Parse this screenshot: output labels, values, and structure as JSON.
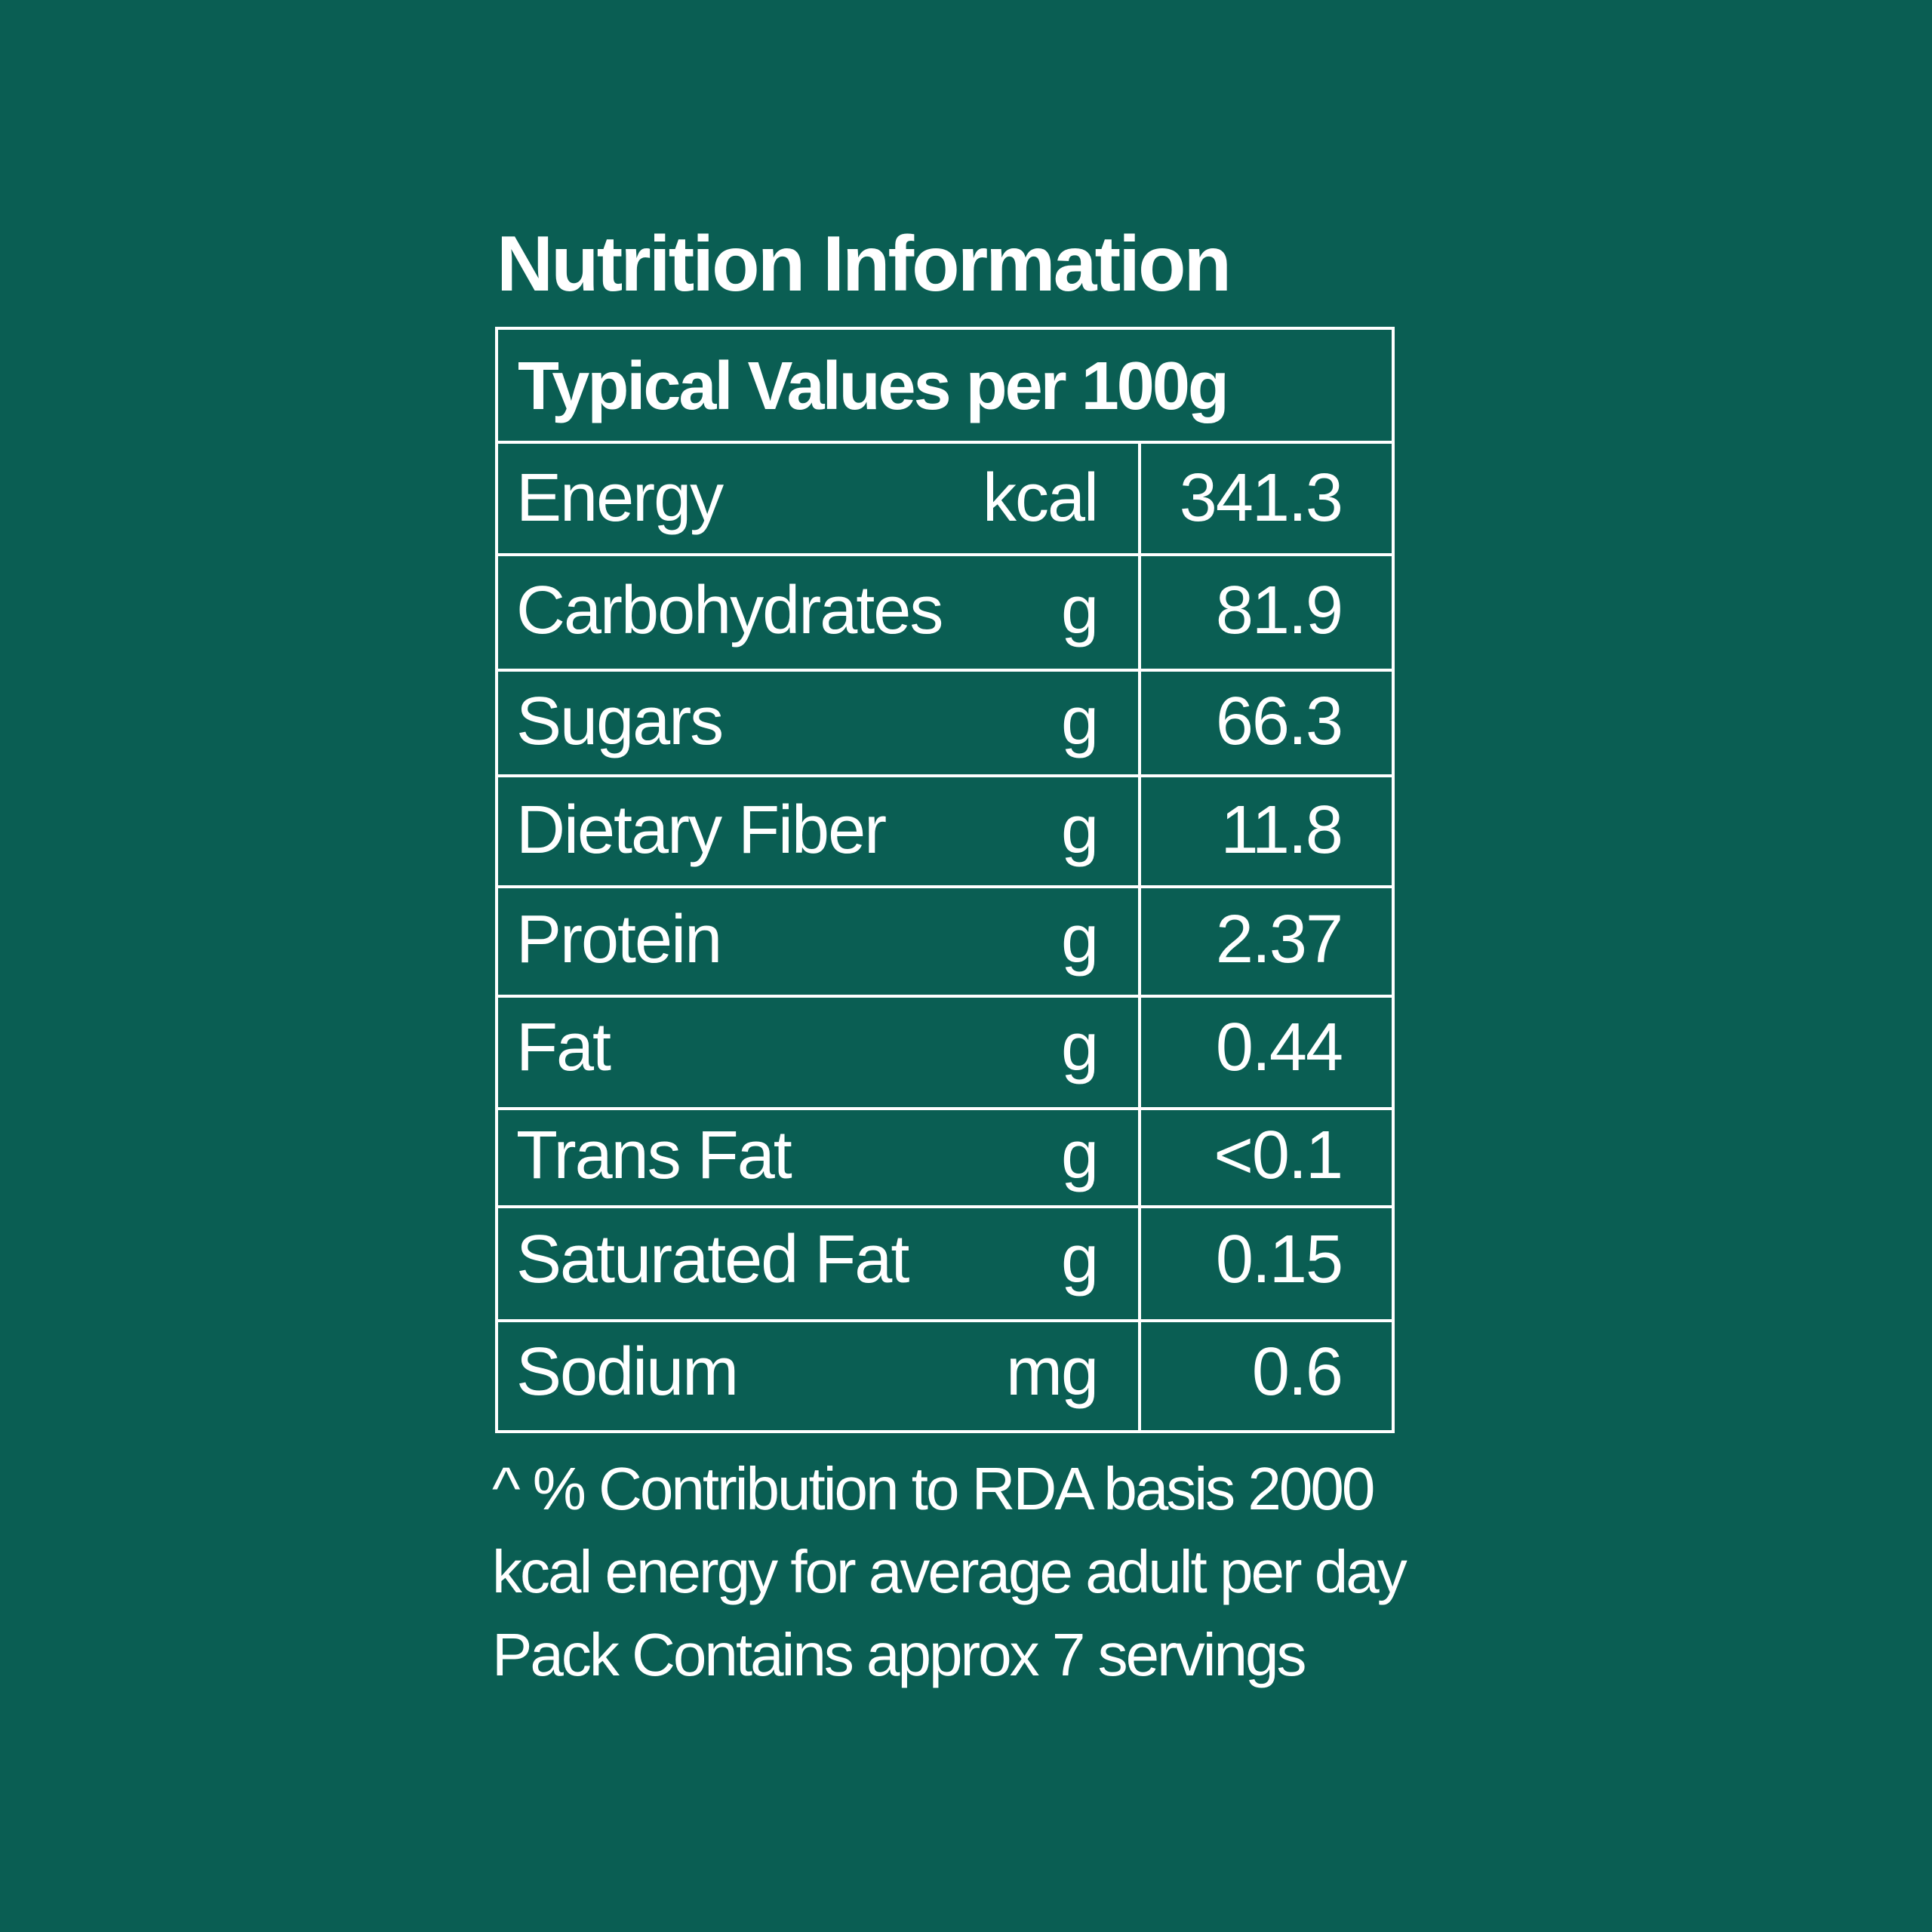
{
  "title": "Nutrition Information",
  "table": {
    "header": "Typical Values per 100g",
    "rows": [
      {
        "name": "Energy",
        "unit": "kcal",
        "value": "341.3"
      },
      {
        "name": "Carbohydrates",
        "unit": "g",
        "value": "81.9"
      },
      {
        "name": "Sugars",
        "unit": "g",
        "value": "66.3"
      },
      {
        "name": "Dietary Fiber",
        "unit": "g",
        "value": "11.8"
      },
      {
        "name": "Protein",
        "unit": "g",
        "value": "2.37"
      },
      {
        "name": "Fat",
        "unit": "g",
        "value": "0.44"
      },
      {
        "name": "Trans Fat",
        "unit": "g",
        "value": "<0.1"
      },
      {
        "name": "Saturated Fat",
        "unit": "g",
        "value": "0.15"
      },
      {
        "name": "Sodium",
        "unit": "mg",
        "value": "0.6"
      }
    ]
  },
  "footnote": {
    "line1": "^ % Contribution to RDA basis 2000",
    "line2": "kcal energy for average adult per day",
    "line3": "Pack Contains approx 7 servings"
  }
}
